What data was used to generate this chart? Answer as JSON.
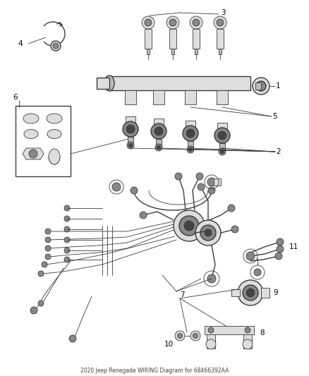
{
  "title": "2020 Jeep Renegade WIRING Diagram for 68466392AA",
  "background_color": "#ffffff",
  "line_color": "#3a3a3a",
  "label_color": "#000000",
  "figsize": [
    4.38,
    5.33
  ],
  "dpi": 100,
  "lw_thin": 0.6,
  "lw_med": 1.0,
  "lw_thick": 1.4,
  "gray_dark": "#444444",
  "gray_mid": "#888888",
  "gray_light": "#bbbbbb",
  "gray_very_light": "#dddddd"
}
